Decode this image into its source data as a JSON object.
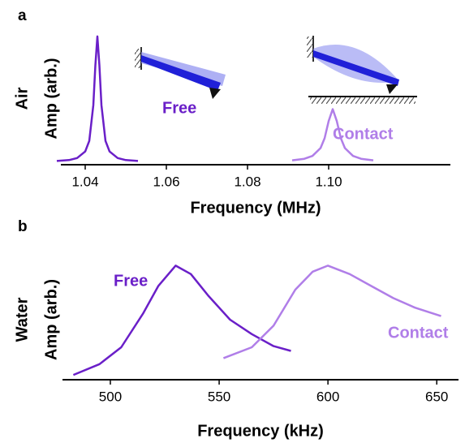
{
  "chart_data": [
    {
      "type": "line",
      "panel": "a",
      "ylabel": [
        "Air",
        "Amp (arb.)"
      ],
      "xlabel": "Frequency (MHz)",
      "xlim": [
        1.034,
        1.13
      ],
      "ylim": [
        0,
        1
      ],
      "xticks": [
        {
          "value": 1.04,
          "label": "1.04"
        },
        {
          "value": 1.06,
          "label": "1.06"
        },
        {
          "value": 1.08,
          "label": "1.08"
        },
        {
          "value": 1.1,
          "label": "1.10"
        }
      ],
      "series": [
        {
          "name": "Free",
          "color": "#6a1fc8",
          "x": [
            1.033,
            1.036,
            1.038,
            1.04,
            1.041,
            1.042,
            1.0425,
            1.043,
            1.0435,
            1.044,
            1.045,
            1.046,
            1.048,
            1.05,
            1.053
          ],
          "values": [
            0.028,
            0.035,
            0.05,
            0.1,
            0.18,
            0.45,
            0.75,
            0.97,
            0.75,
            0.45,
            0.18,
            0.1,
            0.05,
            0.035,
            0.028
          ]
        },
        {
          "name": "Contact",
          "color": "#b07ee8",
          "x": [
            1.091,
            1.094,
            1.096,
            1.098,
            1.099,
            1.1,
            1.101,
            1.102,
            1.103,
            1.104,
            1.106,
            1.108,
            1.111
          ],
          "values": [
            0.033,
            0.045,
            0.066,
            0.126,
            0.2,
            0.33,
            0.42,
            0.33,
            0.2,
            0.126,
            0.066,
            0.045,
            0.033
          ]
        }
      ]
    },
    {
      "type": "line",
      "panel": "b",
      "ylabel": [
        "Water",
        "Amp (arb.)"
      ],
      "xlabel": "Frequency (kHz)",
      "xlim": [
        478,
        660
      ],
      "ylim": [
        0,
        1
      ],
      "xticks": [
        500,
        550,
        600,
        650
      ],
      "series": [
        {
          "name": "Free",
          "color": "#6a1fc8",
          "x": [
            483,
            495,
            505,
            515,
            522,
            530,
            537,
            545,
            555,
            565,
            575,
            583
          ],
          "values": [
            0.04,
            0.13,
            0.27,
            0.55,
            0.78,
            0.95,
            0.88,
            0.7,
            0.5,
            0.38,
            0.28,
            0.24
          ]
        },
        {
          "name": "Contact",
          "color": "#b07ee8",
          "x": [
            552,
            565,
            575,
            585,
            593,
            600,
            610,
            620,
            630,
            640,
            652
          ],
          "values": [
            0.18,
            0.27,
            0.45,
            0.75,
            0.9,
            0.95,
            0.88,
            0.78,
            0.68,
            0.6,
            0.53
          ]
        }
      ]
    }
  ]
}
